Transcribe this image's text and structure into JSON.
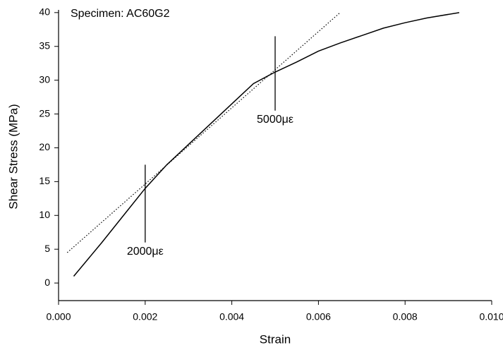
{
  "chart_data": {
    "type": "line",
    "title": "Specimen:  AC60G2",
    "x_label": "Strain",
    "y_label": "Shear Stress (MPa)",
    "series": [
      {
        "color": "#000000",
        "style": "solid",
        "x": [
          0.00035,
          0.001,
          0.0015,
          0.002,
          0.0025,
          0.003,
          0.0035,
          0.004,
          0.0045,
          0.005,
          0.0055,
          0.006,
          0.0065,
          0.007,
          0.0075,
          0.008,
          0.0085,
          0.00925
        ],
        "values": [
          1,
          6,
          10,
          14,
          17.5,
          20.5,
          23.5,
          26.5,
          29.5,
          31.2,
          32.7,
          34.3,
          35.5,
          36.6,
          37.7,
          38.5,
          39.2,
          40
        ]
      },
      {
        "color": "#000000",
        "style": "dotted",
        "x": [
          0.0002,
          0.0065
        ],
        "values": [
          4.5,
          40
        ]
      }
    ],
    "annotations": [
      {
        "text": "2000με",
        "x": 0.002,
        "y": [
          6,
          17.5
        ]
      },
      {
        "text": "5000με",
        "x": 0.005,
        "y": [
          25.5,
          36.5
        ]
      }
    ],
    "xlim": [
      0,
      0.01
    ],
    "ylim": [
      -2.6,
      40.4
    ],
    "xticks": [
      {
        "value": 0,
        "label": "0.000"
      },
      {
        "value": 0.002,
        "label": "0.002"
      },
      {
        "value": 0.004,
        "label": "0.004"
      },
      {
        "value": 0.006,
        "label": "0.006"
      },
      {
        "value": 0.008,
        "label": "0.008"
      },
      {
        "value": 0.01,
        "label": "0.010"
      }
    ],
    "yticks": [
      0,
      5,
      10,
      15,
      20,
      25,
      30,
      35,
      40
    ]
  }
}
